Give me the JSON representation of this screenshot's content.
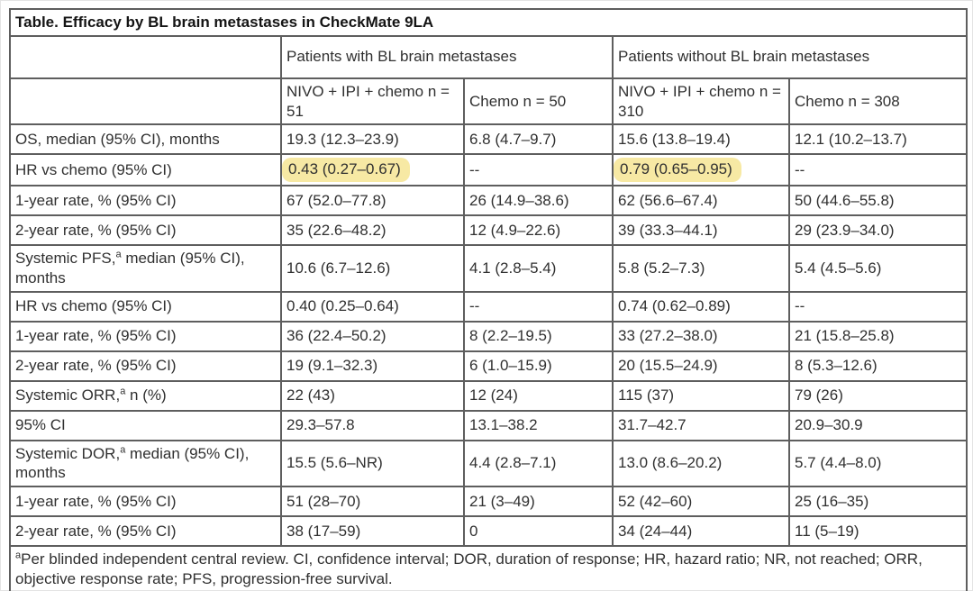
{
  "table": {
    "title": "Table. Efficacy by BL brain metastases in CheckMate 9LA",
    "group_headers": [
      "Patients with BL brain metastases",
      "Patients without BL brain metastases"
    ],
    "sub_headers": [
      "NIVO + IPI + chemo n = 51",
      "Chemo n = 50",
      "NIVO + IPI + chemo n = 310",
      "Chemo n = 308"
    ],
    "rows": [
      {
        "label_pre": "OS, median (95% CI), months",
        "values": [
          "19.3 (12.3–23.9)",
          "6.8 (4.7–9.7)",
          "15.6 (13.8–19.4)",
          "12.1 (10.2–13.7)"
        ]
      },
      {
        "label_pre": "HR vs chemo (95% CI)",
        "values": [
          "0.43 (0.27–0.67)",
          "--",
          "0.79 (0.65–0.95)",
          "--"
        ],
        "highlight": [
          0,
          2
        ]
      },
      {
        "label_pre": "1-year rate, % (95% CI)",
        "values": [
          "67 (52.0–77.8)",
          "26 (14.9–38.6)",
          "62 (56.6–67.4)",
          "50 (44.6–55.8)"
        ]
      },
      {
        "label_pre": "2-year rate, % (95% CI)",
        "values": [
          "35 (22.6–48.2)",
          "12 (4.9–22.6)",
          "39 (33.3–44.1)",
          "29 (23.9–34.0)"
        ]
      },
      {
        "label_pre": "Systemic PFS,",
        "label_sup": "a",
        "label_post": " median (95% CI), months",
        "tall": true,
        "values": [
          "10.6 (6.7–12.6)",
          "4.1 (2.8–5.4)",
          "5.8 (5.2–7.3)",
          "5.4 (4.5–5.6)"
        ]
      },
      {
        "label_pre": "HR vs chemo (95% CI)",
        "values": [
          "0.40 (0.25–0.64)",
          "--",
          "0.74 (0.62–0.89)",
          "--"
        ]
      },
      {
        "label_pre": "1-year rate, % (95% CI)",
        "values": [
          "36 (22.4–50.2)",
          "8 (2.2–19.5)",
          "33 (27.2–38.0)",
          "21 (15.8–25.8)"
        ]
      },
      {
        "label_pre": "2-year rate, % (95% CI)",
        "values": [
          "19 (9.1–32.3)",
          "6 (1.0–15.9)",
          "20 (15.5–24.9)",
          "8 (5.3–12.6)"
        ]
      },
      {
        "label_pre": "Systemic ORR,",
        "label_sup": "a",
        "label_post": " n (%)",
        "values": [
          "22 (43)",
          "12 (24)",
          "115 (37)",
          "79 (26)"
        ]
      },
      {
        "label_pre": "95% CI",
        "values": [
          "29.3–57.8",
          "13.1–38.2",
          "31.7–42.7",
          "20.9–30.9"
        ]
      },
      {
        "label_pre": "Systemic DOR,",
        "label_sup": "a",
        "label_post": " median (95% CI), months",
        "tall": true,
        "values": [
          "15.5 (5.6–NR)",
          "4.4 (2.8–7.1)",
          "13.0 (8.6–20.2)",
          "5.7 (4.4–8.0)"
        ]
      },
      {
        "label_pre": "1-year rate, % (95% CI)",
        "values": [
          "51 (28–70)",
          "21 (3–49)",
          "52 (42–60)",
          "25 (16–35)"
        ]
      },
      {
        "label_pre": "2-year rate, % (95% CI)",
        "values": [
          "38 (17–59)",
          "0",
          "34 (24–44)",
          "11 (5–19)"
        ]
      }
    ],
    "footnote_sup": "a",
    "footnote": "Per blinded independent central review. CI, confidence interval; DOR, duration of response; HR, hazard ratio; NR, not reached; ORR, objective response rate; PFS, progression-free survival."
  },
  "colors": {
    "highlight": "#f7e9a4",
    "border": "#5e5e5e",
    "text": "#303030"
  }
}
